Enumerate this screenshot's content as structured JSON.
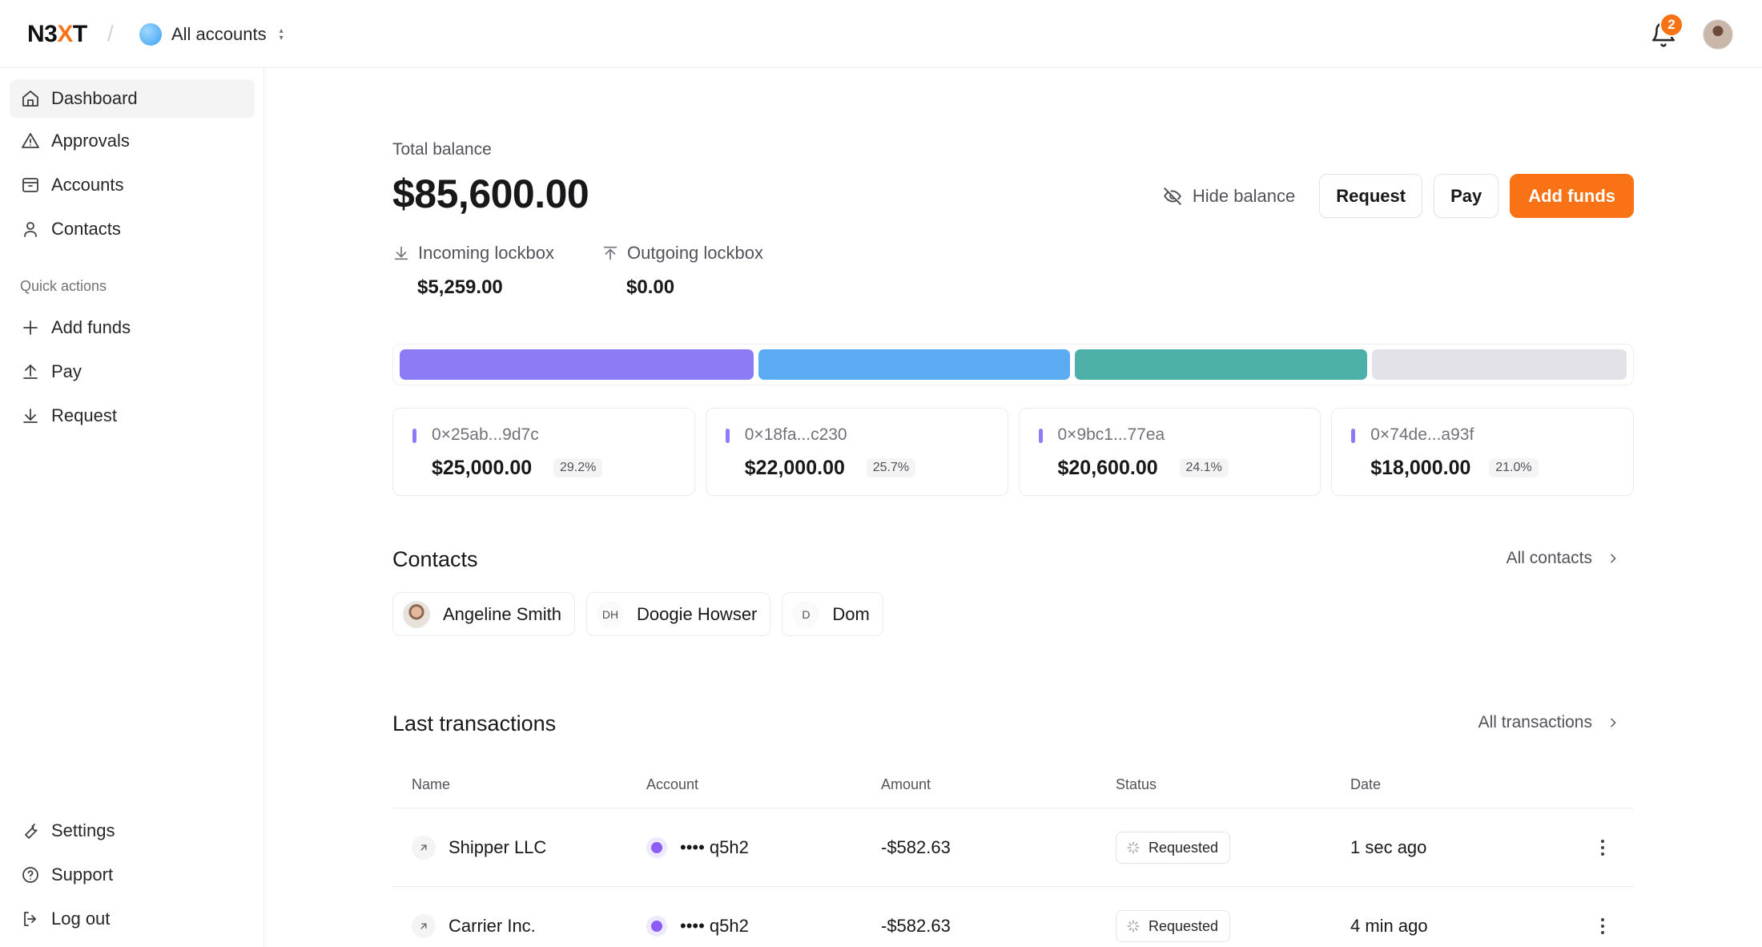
{
  "app": {
    "logo": "N3XT",
    "account_switcher": "All accounts",
    "notification_count": "2"
  },
  "sidebar": {
    "items": [
      {
        "label": "Dashboard",
        "icon": "home-icon",
        "active": true
      },
      {
        "label": "Approvals",
        "icon": "warning-icon"
      },
      {
        "label": "Accounts",
        "icon": "archive-icon"
      },
      {
        "label": "Contacts",
        "icon": "user-icon"
      }
    ],
    "quick_actions_label": "Quick actions",
    "quick_actions": [
      {
        "label": "Add funds",
        "icon": "plus-icon"
      },
      {
        "label": "Pay",
        "icon": "upload-icon"
      },
      {
        "label": "Request",
        "icon": "download-icon"
      }
    ],
    "bottom": [
      {
        "label": "Settings",
        "icon": "wrench-icon"
      },
      {
        "label": "Support",
        "icon": "help-circle-icon"
      },
      {
        "label": "Log out",
        "icon": "logout-icon"
      }
    ]
  },
  "balance": {
    "label": "Total balance",
    "value": "$85,600.00",
    "hide_label": "Hide balance",
    "request_label": "Request",
    "pay_label": "Pay",
    "add_funds_label": "Add funds",
    "incoming_label": "Incoming lockbox",
    "incoming_value": "$5,259.00",
    "outgoing_label": "Outgoing lockbox",
    "outgoing_value": "$0.00"
  },
  "distribution": [
    {
      "share": 29.2,
      "color": "#8b7cf6"
    },
    {
      "share": 25.7,
      "color": "#5aabf1"
    },
    {
      "share": 24.1,
      "color": "#4db0a8"
    },
    {
      "share": 21.0,
      "color": "#e2e2e8"
    }
  ],
  "accounts": [
    {
      "address": "0×25ab...9d7c",
      "amount": "$25,000.00",
      "percent": "29.2%",
      "color": "#8b7cf6"
    },
    {
      "address": "0×18fa...c230",
      "amount": "$22,000.00",
      "percent": "25.7%",
      "color": "#8b7cf6"
    },
    {
      "address": "0×9bc1...77ea",
      "amount": "$20,600.00",
      "percent": "24.1%",
      "color": "#8b7cf6"
    },
    {
      "address": "0×74de...a93f",
      "amount": "$18,000.00",
      "percent": "21.0%",
      "color": "#8b7cf6"
    }
  ],
  "contacts": {
    "title": "Contacts",
    "link": "All contacts",
    "items": [
      {
        "name": "Angeline Smith",
        "initials": ""
      },
      {
        "name": "Doogie Howser",
        "initials": "DH"
      },
      {
        "name": "Dom",
        "initials": "D"
      }
    ]
  },
  "transactions": {
    "title": "Last transactions",
    "link": "All transactions",
    "columns": [
      "Name",
      "Account",
      "Amount",
      "Status",
      "Date"
    ],
    "rows": [
      {
        "name": "Shipper LLC",
        "account": "•••• q5h2",
        "amount": "-$582.63",
        "status": "Requested",
        "date": "1 sec ago"
      },
      {
        "name": "Carrier Inc.",
        "account": "•••• q5h2",
        "amount": "-$582.63",
        "status": "Requested",
        "date": "4 min ago"
      }
    ]
  }
}
